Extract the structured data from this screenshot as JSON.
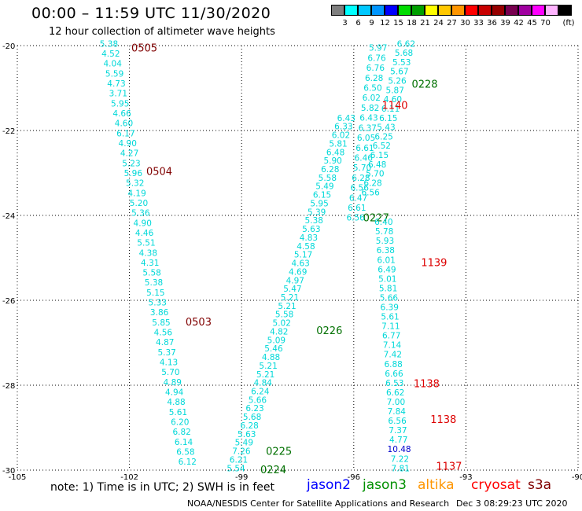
{
  "header": {
    "title": "00:00 – 11:59 UTC 11/30/2020",
    "subtitle": "12 hour collection of altimeter wave heights"
  },
  "legend": {
    "unit": "(ft)",
    "bins": [
      {
        "color": "#7f7f7f",
        "label": ""
      },
      {
        "color": "#00ffff",
        "label": "3"
      },
      {
        "color": "#00c8ff",
        "label": "6"
      },
      {
        "color": "#0096ff",
        "label": "9"
      },
      {
        "color": "#0000ff",
        "label": "12"
      },
      {
        "color": "#00dc00",
        "label": "15"
      },
      {
        "color": "#00a000",
        "label": "18"
      },
      {
        "color": "#ffff00",
        "label": "21"
      },
      {
        "color": "#ffc800",
        "label": "24"
      },
      {
        "color": "#ff9600",
        "label": "27"
      },
      {
        "color": "#ff0000",
        "label": "30"
      },
      {
        "color": "#c80000",
        "label": "33"
      },
      {
        "color": "#960000",
        "label": "36"
      },
      {
        "color": "#780050",
        "label": "39"
      },
      {
        "color": "#a000a0",
        "label": "42"
      },
      {
        "color": "#ff00ff",
        "label": "45"
      },
      {
        "color": "#ffb4ff",
        "label": "70"
      },
      {
        "color": "#000000",
        "label": ""
      }
    ]
  },
  "map": {
    "lon_range": [
      -105,
      -90
    ],
    "lat_range": [
      -30,
      -20
    ],
    "x_ticks": [
      "-105",
      "-102",
      "-99",
      "-96",
      "-93",
      "-90"
    ],
    "y_ticks": [
      "-20",
      "-22",
      "-24",
      "-26",
      "-28",
      "-30"
    ],
    "grid": true,
    "point_color": "#00d8d8",
    "tracks": [
      {
        "satellite": "cryosat",
        "lon_start": -102.55,
        "lon_end": -100.45,
        "values": [
          "5.38",
          "4.52",
          "4.04",
          "5.59",
          "4.73",
          "3.71",
          "5.95",
          "4.66",
          "4.60",
          "6.17",
          "4.90",
          "4.27",
          "5.23",
          "5.96",
          "5.32",
          "4.19",
          "5.20",
          "5.36",
          "4.90",
          "4.46",
          "5.51",
          "4.38",
          "4.31",
          "5.58",
          "5.38",
          "5.15",
          "5.33",
          "3.86",
          "5.85",
          "4.56",
          "4.87",
          "5.37",
          "4.13",
          "5.70",
          "4.89",
          "4.94",
          "4.88",
          "5.61",
          "6.20",
          "6.82",
          "6.14",
          "6.58",
          "6.12"
        ],
        "time_labels": [
          {
            "text": "0505",
            "lat": -20.05,
            "lon": -101.95,
            "color": "#800000"
          },
          {
            "text": "0504",
            "lat": -22.95,
            "lon": -101.55,
            "color": "#800000"
          },
          {
            "text": "0503",
            "lat": -26.5,
            "lon": -100.5,
            "color": "#800000"
          }
        ]
      },
      {
        "satellite": "jason3",
        "lon_start": -99.15,
        "lon_end": -96.2,
        "values": [
          "5.54",
          "6.21",
          "7.26",
          "5.49",
          "5.63",
          "6.28",
          "5.68",
          "6.23",
          "5.66",
          "6.24",
          "4.84",
          "5.21",
          "5.21",
          "4.88",
          "5.46",
          "5.09",
          "4.82",
          "5.02",
          "5.58",
          "5.21",
          "5.21",
          "5.47",
          "4.97",
          "4.69",
          "4.63",
          "5.17",
          "4.58",
          "4.83",
          "5.63",
          "5.38",
          "5.39",
          "5.95",
          "6.15",
          "5.49",
          "5.58",
          "6.28",
          "5.90",
          "6.48",
          "5.81",
          "6.02",
          "6.33",
          "6.43"
        ],
        "time_labels": [
          {
            "text": "0224",
            "lat": -29.98,
            "lon": -98.5,
            "color": "#007000"
          },
          {
            "text": "0225",
            "lat": -29.55,
            "lon": -98.35,
            "color": "#007000"
          },
          {
            "text": "0226",
            "lat": -26.7,
            "lon": -97.0,
            "color": "#007000"
          },
          {
            "text": "0227",
            "lat": -24.05,
            "lon": -95.75,
            "color": "#007000"
          },
          {
            "text": "0228",
            "lat": -20.9,
            "lon": -94.45,
            "color": "#007000"
          }
        ]
      },
      {
        "satellite": "sentinel",
        "lon_start": -95.35,
        "lon_end": -95.95,
        "values": [
          "5.97",
          "6.76",
          "6.76",
          "6.28",
          "6.50",
          "6.02",
          "5.82",
          "6.43",
          "6.37",
          "6.05",
          "6.61",
          "6.46",
          "5.70",
          "6.28",
          "6.56",
          "6.47",
          "6.61",
          "6.56"
        ],
        "time_labels": []
      },
      {
        "satellite": "jason3-asc",
        "lon_start": -94.6,
        "lon_end": -95.55,
        "values": [
          "6.62",
          "5.68",
          "5.53",
          "5.67",
          "5.26",
          "5.87",
          "4.60",
          "6.11",
          "6.15",
          "5.43",
          "6.25",
          "6.52",
          "6.15",
          "6.48",
          "5.70",
          "6.28",
          "6.56"
        ],
        "time_labels": [
          {
            "text": "1140",
            "lat": -21.4,
            "lon": -95.25,
            "color": "#dd0000"
          }
        ]
      },
      {
        "satellite": "cryosat",
        "lon_start": -95.2,
        "lon_end": -94.75,
        "values": [
          "6.40",
          "5.78",
          "5.93",
          "6.38",
          "6.01",
          "6.49",
          "5.01",
          "5.81",
          "5.66",
          "6.39",
          "5.61",
          "7.11",
          "6.77",
          "7.14",
          "7.42",
          "6.88",
          "6.66",
          "6.53",
          "6.62",
          "7.00",
          "7.84",
          "6.56",
          "7.37",
          "4.77",
          "10.48",
          "7.22",
          "7.81"
        ],
        "time_labels": [
          {
            "text": "1139",
            "lat": -25.1,
            "lon": -94.2,
            "color": "#dd0000"
          },
          {
            "text": "1138",
            "lat": -27.95,
            "lon": -94.4,
            "color": "#dd0000"
          },
          {
            "text": "1138",
            "lat": -28.8,
            "lon": -93.95,
            "color": "#dd0000"
          },
          {
            "text": "1137",
            "lat": -29.9,
            "lon": -93.8,
            "color": "#dd0000"
          }
        ]
      }
    ]
  },
  "footer": {
    "note": "note: 1) Time is in UTC; 2) SWH is in feet",
    "satellites": [
      {
        "name": "jason2",
        "color": "#0000ff"
      },
      {
        "name": "jason3",
        "color": "#009000"
      },
      {
        "name": "altika",
        "color": "#ff9600"
      },
      {
        "name": "cryosat",
        "color": "#ff0000"
      },
      {
        "name": "s3a",
        "color": "#800000"
      }
    ],
    "credit": "NOAA/NESDIS Center for Satellite Applications and Research",
    "timestamp": "Dec  3 08:29:23 UTC 2020"
  }
}
